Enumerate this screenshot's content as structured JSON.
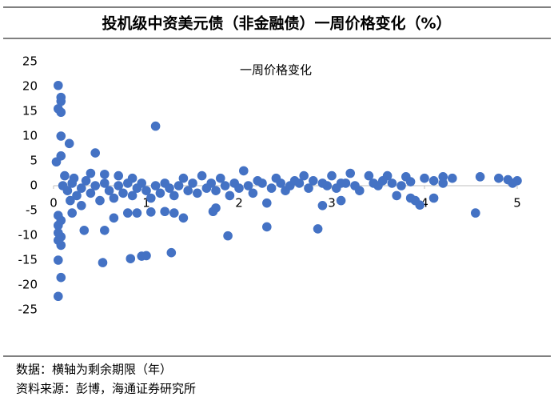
{
  "chart_data": {
    "type": "scatter",
    "title": "投机级中资美元债（非金融债）一周价格变化（%）",
    "annotation": "一周价格变化",
    "color": "#4472c4",
    "xlim": [
      0,
      5
    ],
    "ylim": [
      -25,
      25
    ],
    "xticks": [
      0,
      1,
      2,
      3,
      4,
      5
    ],
    "yticks": [
      -25,
      -20,
      -15,
      -10,
      -5,
      0,
      5,
      10,
      15,
      20,
      25
    ],
    "x": [
      0.05,
      0.08,
      0.08,
      0.05,
      0.08,
      0.08,
      0.08,
      0.17,
      0.03,
      0.45,
      1.1,
      0.05,
      0.08,
      0.05,
      0.08,
      0.05,
      0.08,
      0.05,
      0.05,
      0.08,
      0.05,
      0.53,
      0.83,
      0.95,
      1.0,
      1.27,
      1.88,
      0.33,
      0.55,
      2.3,
      2.85,
      1.4,
      0.2,
      0.65,
      0.8,
      0.9,
      1.05,
      1.2,
      1.3,
      1.72,
      1.75,
      2.3,
      2.9,
      3.1,
      3.7,
      3.85,
      3.9,
      4.1,
      4.55,
      3.95,
      0.4,
      0.55,
      0.7,
      0.85,
      1.4,
      1.6,
      1.8,
      2.05,
      2.4,
      2.7,
      3.0,
      3.2,
      3.4,
      3.6,
      3.8,
      4.0,
      4.2,
      4.3,
      4.6,
      4.8,
      4.9,
      4.95,
      5.0,
      3.85,
      4.1,
      4.2,
      2.2,
      2.6,
      2.9,
      3.1,
      0.1,
      0.15,
      0.2,
      0.25,
      0.3,
      0.35,
      0.4,
      0.45,
      0.5,
      0.55,
      0.6,
      0.65,
      0.7,
      0.75,
      0.8,
      0.85,
      0.9,
      0.95,
      1.0,
      1.05,
      1.1,
      1.15,
      1.2,
      1.25,
      1.3,
      1.35,
      1.45,
      1.5,
      1.55,
      1.65,
      1.7,
      1.75,
      1.85,
      1.9,
      1.95,
      2.0,
      2.1,
      2.15,
      2.25,
      2.35,
      2.45,
      2.5,
      2.55,
      2.65,
      2.75,
      2.8,
      2.95,
      3.05,
      3.15,
      3.25,
      3.3,
      3.45,
      3.5,
      3.55,
      3.65,
      3.75,
      0.12,
      0.18,
      0.22,
      0.3
    ],
    "values": [
      20.2,
      17.8,
      17,
      15.5,
      14.8,
      10,
      6,
      8.5,
      4.8,
      6.6,
      12,
      -22.3,
      -18.5,
      -15,
      -12,
      -11,
      -10.3,
      -9.5,
      -8,
      -7,
      -6,
      -15.5,
      -14.7,
      -14.2,
      -14.1,
      -13.5,
      -10.1,
      -9,
      -9,
      -8.3,
      -8.7,
      -6.5,
      -5.5,
      -6.5,
      -5.5,
      -5.5,
      -5.3,
      -5.2,
      -5.5,
      -5.2,
      -4.5,
      -3.5,
      -4,
      -3,
      -2,
      -2.5,
      -3,
      -2.5,
      -5.5,
      -3.9,
      2.5,
      2.3,
      2,
      1.5,
      1.5,
      2,
      1.5,
      3,
      1.5,
      2,
      2,
      2.5,
      2,
      2,
      1.8,
      1.5,
      1.8,
      1.5,
      1.8,
      1.5,
      1.2,
      0.5,
      1,
      0.8,
      1,
      0.5,
      1,
      1,
      0.5,
      0.5,
      0,
      -1,
      0.5,
      -2,
      -0.5,
      1,
      -1.5,
      0,
      -3,
      0.5,
      -1,
      -2.5,
      0,
      -1.5,
      0.5,
      -2,
      -0.5,
      0.5,
      -1,
      -2.5,
      0,
      -1.5,
      0.5,
      -0.5,
      -2,
      0,
      -1,
      0.5,
      -1.5,
      -0.5,
      0.5,
      -1,
      0,
      -2,
      0.5,
      -0.5,
      0,
      -1.5,
      0.5,
      -0.5,
      0.5,
      -1,
      0,
      0.5,
      -0.5,
      1,
      0,
      -0.5,
      0.5,
      0,
      -1,
      0.5,
      0,
      1,
      0.5,
      0,
      2,
      -3,
      1.5,
      -4
    ]
  },
  "notes": [
    "数据：横轴为剩余期限（年）",
    "资料来源：彭博，海通证券研究所"
  ]
}
